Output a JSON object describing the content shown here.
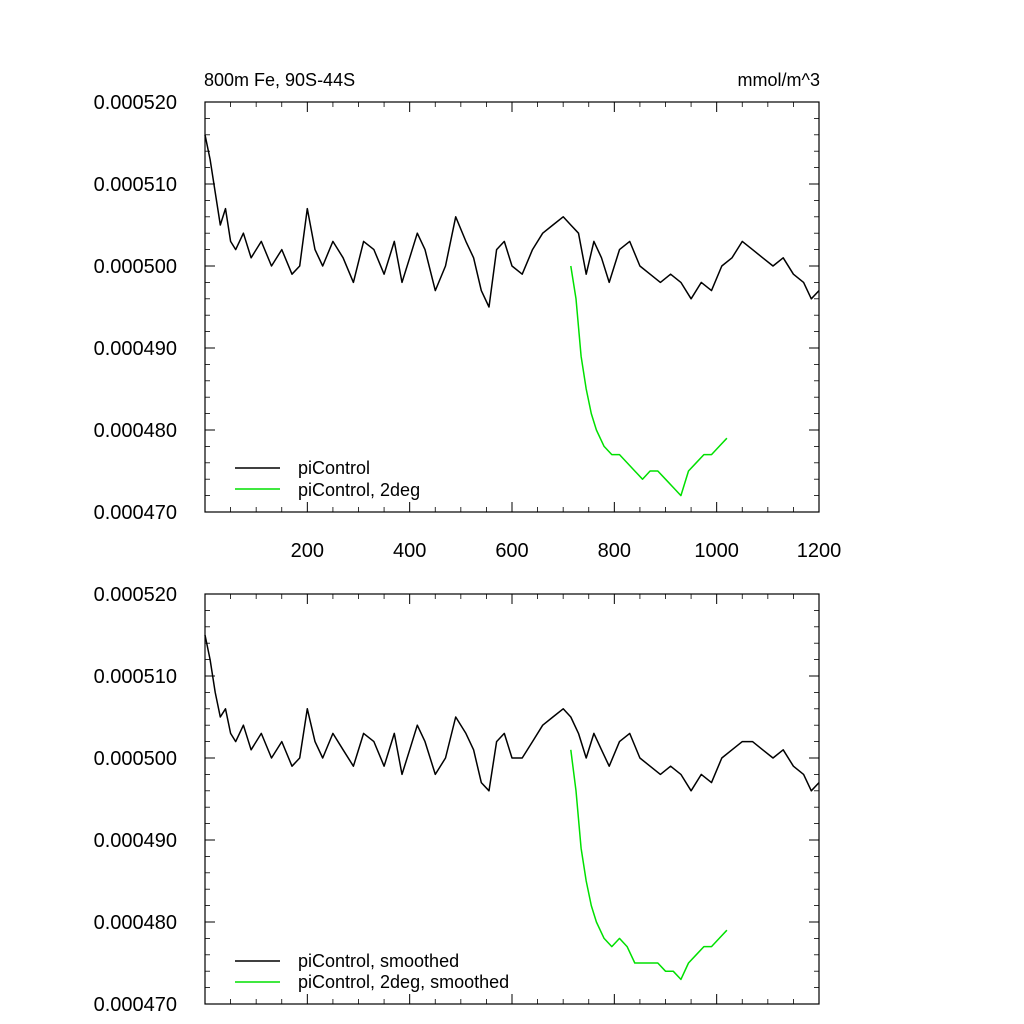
{
  "chart_data": [
    {
      "type": "line",
      "title": "800m Fe, 90S-44S",
      "units": "mmol/m^3",
      "xlabel": "",
      "ylabel": "",
      "xlim": [
        0,
        1200
      ],
      "ylim": [
        0.00047,
        0.00052
      ],
      "x_ticks": [
        200,
        400,
        600,
        800,
        1000,
        1200
      ],
      "x_tick_labels": [
        "200",
        "400",
        "600",
        "800",
        "1000",
        "1200"
      ],
      "y_ticks": [
        0.00047,
        0.00048,
        0.00049,
        0.0005,
        0.00051,
        0.00052
      ],
      "y_tick_labels": [
        "0.000470",
        "0.000480",
        "0.000490",
        "0.000500",
        "0.000510",
        "0.000520"
      ],
      "legend_position": "bottom-left",
      "series": [
        {
          "name": "piControl",
          "color": "#000000",
          "x": [
            0,
            10,
            20,
            30,
            40,
            50,
            60,
            75,
            90,
            110,
            130,
            150,
            170,
            185,
            200,
            215,
            230,
            250,
            270,
            290,
            310,
            330,
            350,
            370,
            385,
            400,
            415,
            430,
            450,
            470,
            490,
            510,
            525,
            540,
            555,
            570,
            585,
            600,
            620,
            640,
            660,
            680,
            700,
            715,
            730,
            745,
            760,
            775,
            790,
            810,
            830,
            850,
            870,
            890,
            910,
            930,
            950,
            970,
            990,
            1010,
            1030,
            1050,
            1070,
            1090,
            1110,
            1130,
            1150,
            1170,
            1185,
            1200
          ],
          "values": [
            0.000516,
            0.000513,
            0.000509,
            0.000505,
            0.000507,
            0.000503,
            0.000502,
            0.000504,
            0.000501,
            0.000503,
            0.0005,
            0.000502,
            0.000499,
            0.0005,
            0.000507,
            0.000502,
            0.0005,
            0.000503,
            0.000501,
            0.000498,
            0.000503,
            0.000502,
            0.000499,
            0.000503,
            0.000498,
            0.000501,
            0.000504,
            0.000502,
            0.000497,
            0.0005,
            0.000506,
            0.000503,
            0.000501,
            0.000497,
            0.000495,
            0.000502,
            0.000503,
            0.0005,
            0.000499,
            0.000502,
            0.000504,
            0.000505,
            0.000506,
            0.000505,
            0.000504,
            0.000499,
            0.000503,
            0.000501,
            0.000498,
            0.000502,
            0.000503,
            0.0005,
            0.000499,
            0.000498,
            0.000499,
            0.000498,
            0.000496,
            0.000498,
            0.000497,
            0.0005,
            0.000501,
            0.000503,
            0.000502,
            0.000501,
            0.0005,
            0.000501,
            0.000499,
            0.000498,
            0.000496,
            0.000497
          ]
        },
        {
          "name": "piControl, 2deg",
          "color": "#00e000",
          "x": [
            715,
            725,
            735,
            745,
            755,
            765,
            780,
            795,
            810,
            825,
            840,
            855,
            870,
            885,
            900,
            915,
            930,
            945,
            960,
            975,
            990,
            1005,
            1020
          ],
          "values": [
            0.0005,
            0.000496,
            0.000489,
            0.000485,
            0.000482,
            0.00048,
            0.000478,
            0.000477,
            0.000477,
            0.000476,
            0.000475,
            0.000474,
            0.000475,
            0.000475,
            0.000474,
            0.000473,
            0.000472,
            0.000475,
            0.000476,
            0.000477,
            0.000477,
            0.000478,
            0.000479
          ]
        }
      ]
    },
    {
      "type": "line",
      "title": "",
      "units": "",
      "xlabel": "",
      "ylabel": "",
      "xlim": [
        0,
        1200
      ],
      "ylim": [
        0.00047,
        0.00052
      ],
      "x_ticks": [
        200,
        400,
        600,
        800,
        1000,
        1200
      ],
      "x_tick_labels": [],
      "y_ticks": [
        0.00047,
        0.00048,
        0.00049,
        0.0005,
        0.00051,
        0.00052
      ],
      "y_tick_labels": [
        "0.000470",
        "0.000480",
        "0.000490",
        "0.000500",
        "0.000510",
        "0.000520"
      ],
      "legend_position": "bottom-left",
      "series": [
        {
          "name": "piControl, smoothed",
          "color": "#000000",
          "x": [
            0,
            10,
            20,
            30,
            40,
            50,
            60,
            75,
            90,
            110,
            130,
            150,
            170,
            185,
            200,
            215,
            230,
            250,
            270,
            290,
            310,
            330,
            350,
            370,
            385,
            400,
            415,
            430,
            450,
            470,
            490,
            510,
            525,
            540,
            555,
            570,
            585,
            600,
            620,
            640,
            660,
            680,
            700,
            715,
            730,
            745,
            760,
            775,
            790,
            810,
            830,
            850,
            870,
            890,
            910,
            930,
            950,
            970,
            990,
            1010,
            1030,
            1050,
            1070,
            1090,
            1110,
            1130,
            1150,
            1170,
            1185,
            1200
          ],
          "values": [
            0.000515,
            0.000512,
            0.000508,
            0.000505,
            0.000506,
            0.000503,
            0.000502,
            0.000504,
            0.000501,
            0.000503,
            0.0005,
            0.000502,
            0.000499,
            0.0005,
            0.000506,
            0.000502,
            0.0005,
            0.000503,
            0.000501,
            0.000499,
            0.000503,
            0.000502,
            0.000499,
            0.000503,
            0.000498,
            0.000501,
            0.000504,
            0.000502,
            0.000498,
            0.0005,
            0.000505,
            0.000503,
            0.000501,
            0.000497,
            0.000496,
            0.000502,
            0.000503,
            0.0005,
            0.0005,
            0.000502,
            0.000504,
            0.000505,
            0.000506,
            0.000505,
            0.000503,
            0.0005,
            0.000503,
            0.000501,
            0.000499,
            0.000502,
            0.000503,
            0.0005,
            0.000499,
            0.000498,
            0.000499,
            0.000498,
            0.000496,
            0.000498,
            0.000497,
            0.0005,
            0.000501,
            0.000502,
            0.000502,
            0.000501,
            0.0005,
            0.000501,
            0.000499,
            0.000498,
            0.000496,
            0.000497
          ]
        },
        {
          "name": "piControl, 2deg, smoothed",
          "color": "#00e000",
          "x": [
            715,
            725,
            735,
            745,
            755,
            765,
            780,
            795,
            810,
            825,
            840,
            855,
            870,
            885,
            900,
            915,
            930,
            945,
            960,
            975,
            990,
            1005,
            1020
          ],
          "values": [
            0.000501,
            0.000496,
            0.000489,
            0.000485,
            0.000482,
            0.00048,
            0.000478,
            0.000477,
            0.000478,
            0.000477,
            0.000475,
            0.000475,
            0.000475,
            0.000475,
            0.000474,
            0.000474,
            0.000473,
            0.000475,
            0.000476,
            0.000477,
            0.000477,
            0.000478,
            0.000479
          ]
        }
      ]
    }
  ]
}
